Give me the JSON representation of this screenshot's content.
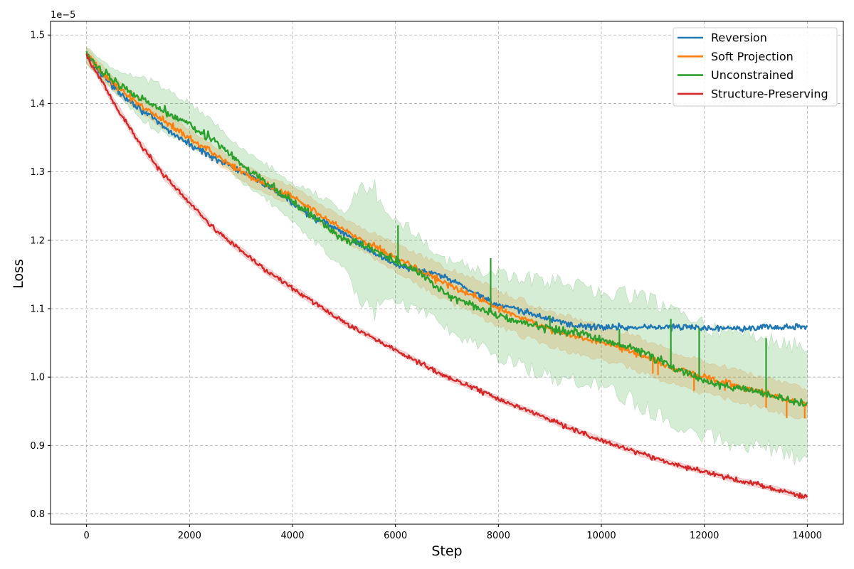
{
  "chart_data": {
    "type": "line",
    "title": "",
    "xlabel": "Step",
    "ylabel": "Loss",
    "y_offset_label": "1e−5",
    "xlim": [
      -700,
      14700
    ],
    "ylim": [
      0.785,
      1.52
    ],
    "x_ticks": [
      0,
      2000,
      4000,
      6000,
      8000,
      10000,
      12000,
      14000
    ],
    "x_tick_labels": [
      "0",
      "2000",
      "4000",
      "6000",
      "8000",
      "10000",
      "12000",
      "14000"
    ],
    "y_ticks": [
      0.8,
      0.9,
      1.0,
      1.1,
      1.2,
      1.3,
      1.4,
      1.5
    ],
    "y_tick_labels": [
      "0.8",
      "0.9",
      "1.0",
      "1.1",
      "1.2",
      "1.3",
      "1.4",
      "1.5"
    ],
    "grid": true,
    "legend_position": "top-right",
    "series": [
      {
        "name": "Reversion",
        "color": "#1f77b4",
        "x": [
          0,
          500,
          1000,
          1500,
          2000,
          2500,
          3000,
          3500,
          4000,
          4500,
          5000,
          5500,
          6000,
          6500,
          7000,
          7500,
          8000,
          8500,
          9000,
          9500,
          10000,
          10500,
          11000,
          11500,
          12000,
          12500,
          13000,
          13500,
          14000
        ],
        "y": [
          1.47,
          1.425,
          1.395,
          1.365,
          1.34,
          1.32,
          1.3,
          1.28,
          1.255,
          1.23,
          1.21,
          1.185,
          1.165,
          1.155,
          1.145,
          1.125,
          1.105,
          1.095,
          1.085,
          1.075,
          1.073,
          1.073,
          1.073,
          1.073,
          1.072,
          1.072,
          1.073,
          1.073,
          1.073
        ],
        "noise": 0.004
      },
      {
        "name": "Soft Projection",
        "color": "#ff7f0e",
        "x": [
          0,
          500,
          1000,
          1500,
          2000,
          2500,
          3000,
          3500,
          4000,
          4500,
          5000,
          5500,
          6000,
          6500,
          7000,
          7500,
          8000,
          8500,
          9000,
          9500,
          10000,
          10500,
          11000,
          11500,
          12000,
          12500,
          13000,
          13500,
          14000
        ],
        "y": [
          1.47,
          1.43,
          1.4,
          1.375,
          1.35,
          1.325,
          1.3,
          1.28,
          1.265,
          1.24,
          1.215,
          1.195,
          1.175,
          1.155,
          1.135,
          1.12,
          1.1,
          1.085,
          1.07,
          1.06,
          1.05,
          1.04,
          1.025,
          1.01,
          1.0,
          0.99,
          0.98,
          0.97,
          0.96
        ],
        "noise": 0.004,
        "band": [
          0.012,
          0.01,
          0.01,
          0.012,
          0.012,
          0.012,
          0.012,
          0.013,
          0.014,
          0.015,
          0.016,
          0.018,
          0.02,
          0.022,
          0.024,
          0.025,
          0.026,
          0.026,
          0.026,
          0.025,
          0.025,
          0.025,
          0.025,
          0.024,
          0.024,
          0.023,
          0.023,
          0.022,
          0.022
        ],
        "spikes": [
          [
            11000,
            1.005
          ],
          [
            11100,
            1.003
          ],
          [
            11800,
            0.98
          ],
          [
            12400,
            0.98
          ],
          [
            13200,
            0.955
          ],
          [
            13600,
            0.94
          ],
          [
            13950,
            0.94
          ]
        ]
      },
      {
        "name": "Unconstrained",
        "color": "#2ca02c",
        "x": [
          0,
          500,
          1000,
          1500,
          2000,
          2500,
          3000,
          3500,
          4000,
          4500,
          5000,
          5500,
          6000,
          6500,
          7000,
          7500,
          8000,
          8500,
          9000,
          9500,
          10000,
          10500,
          11000,
          11500,
          12000,
          12500,
          13000,
          13500,
          14000
        ],
        "y": [
          1.47,
          1.435,
          1.41,
          1.39,
          1.37,
          1.345,
          1.31,
          1.285,
          1.255,
          1.23,
          1.2,
          1.19,
          1.17,
          1.15,
          1.12,
          1.105,
          1.09,
          1.08,
          1.07,
          1.065,
          1.055,
          1.045,
          1.03,
          1.01,
          0.995,
          0.985,
          0.98,
          0.97,
          0.96
        ],
        "noise": 0.005,
        "band": [
          0.012,
          0.015,
          0.03,
          0.035,
          0.03,
          0.025,
          0.025,
          0.025,
          0.03,
          0.035,
          0.045,
          0.095,
          0.06,
          0.055,
          0.05,
          0.055,
          0.06,
          0.065,
          0.07,
          0.07,
          0.07,
          0.075,
          0.08,
          0.08,
          0.08,
          0.08,
          0.08,
          0.08,
          0.08
        ],
        "spikes": [
          [
            6050,
            1.222
          ],
          [
            7850,
            1.174
          ],
          [
            9000,
            1.09
          ],
          [
            10350,
            1.07
          ],
          [
            11350,
            1.085
          ],
          [
            11900,
            1.072
          ],
          [
            13200,
            1.057
          ]
        ]
      },
      {
        "name": "Structure-Preserving",
        "color": "#d62728",
        "x": [
          0,
          500,
          1000,
          1500,
          2000,
          2500,
          3000,
          3500,
          4000,
          4500,
          5000,
          5500,
          6000,
          6500,
          7000,
          7500,
          8000,
          8500,
          9000,
          9500,
          10000,
          10500,
          11000,
          11500,
          12000,
          12500,
          13000,
          13500,
          14000
        ],
        "y": [
          1.47,
          1.405,
          1.345,
          1.295,
          1.255,
          1.215,
          1.185,
          1.155,
          1.13,
          1.105,
          1.08,
          1.06,
          1.04,
          1.02,
          1.0,
          0.985,
          0.968,
          0.953,
          0.938,
          0.922,
          0.908,
          0.895,
          0.882,
          0.871,
          0.862,
          0.852,
          0.843,
          0.834,
          0.824
        ],
        "noise": 0.003,
        "band": [
          0.004,
          0.006,
          0.006,
          0.006,
          0.006,
          0.005,
          0.005,
          0.005,
          0.005,
          0.005,
          0.004,
          0.004,
          0.004,
          0.004,
          0.004,
          0.004,
          0.004,
          0.004,
          0.004,
          0.004,
          0.004,
          0.004,
          0.004,
          0.004,
          0.004,
          0.004,
          0.004,
          0.004,
          0.004
        ]
      }
    ]
  }
}
